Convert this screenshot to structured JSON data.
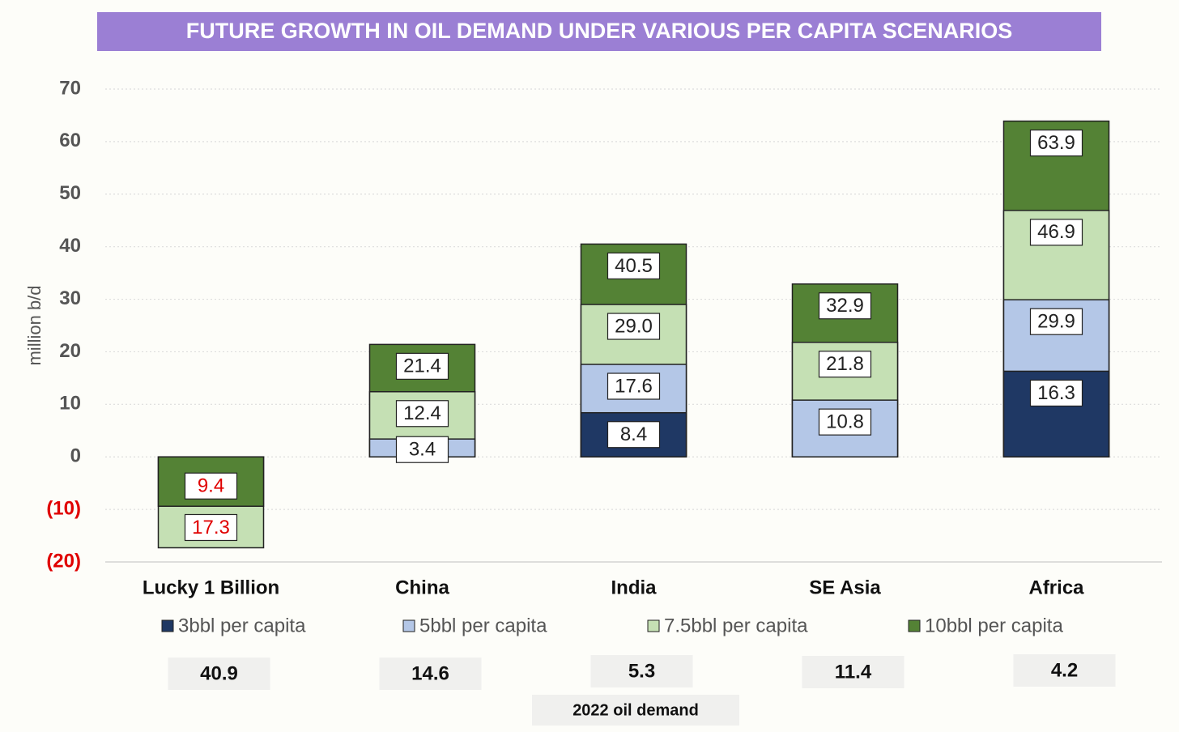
{
  "chart_data": {
    "type": "overlap_bar",
    "title": "FUTURE GROWTH IN OIL DEMAND UNDER VARIOUS PER CAPITA SCENARIOS",
    "y_label": "million b/d",
    "categories": [
      "Lucky 1 Billion",
      "China",
      "India",
      "SE Asia",
      "Africa"
    ],
    "series": [
      {
        "name": "3bbl per capita",
        "color": "#1f3864",
        "values": [
          null,
          null,
          8.4,
          null,
          16.3
        ],
        "value_labels": [
          null,
          null,
          "8.4",
          null,
          "16.3"
        ]
      },
      {
        "name": "5bbl per capita",
        "color": "#b4c7e7",
        "values": [
          null,
          3.4,
          17.6,
          10.8,
          29.9
        ],
        "value_labels": [
          null,
          "3.4",
          "17.6",
          "10.8",
          "29.9"
        ]
      },
      {
        "name": "7.5bbl per capita",
        "color": "#c5e0b4",
        "values": [
          -17.3,
          12.4,
          29.0,
          21.8,
          46.9
        ],
        "value_labels": [
          "17.3",
          "12.4",
          "29.0",
          "21.8",
          "46.9"
        ]
      },
      {
        "name": "10bbl per capita",
        "color": "#548235",
        "values": [
          -9.4,
          21.4,
          40.5,
          32.9,
          63.9
        ],
        "value_labels": [
          "9.4",
          "21.4",
          "40.5",
          "32.9",
          "63.9"
        ]
      }
    ],
    "ylim": [
      -20,
      70
    ],
    "yticks": [
      {
        "value": -20,
        "label": "(20)"
      },
      {
        "value": -10,
        "label": "(10)"
      },
      0,
      10,
      20,
      30,
      40,
      50,
      60,
      70
    ],
    "grid": true,
    "negative_color": "#e00000",
    "demand_2022": {
      "label": "2022 oil demand",
      "values": [
        40.9,
        14.6,
        5.3,
        11.4,
        4.2
      ]
    }
  }
}
